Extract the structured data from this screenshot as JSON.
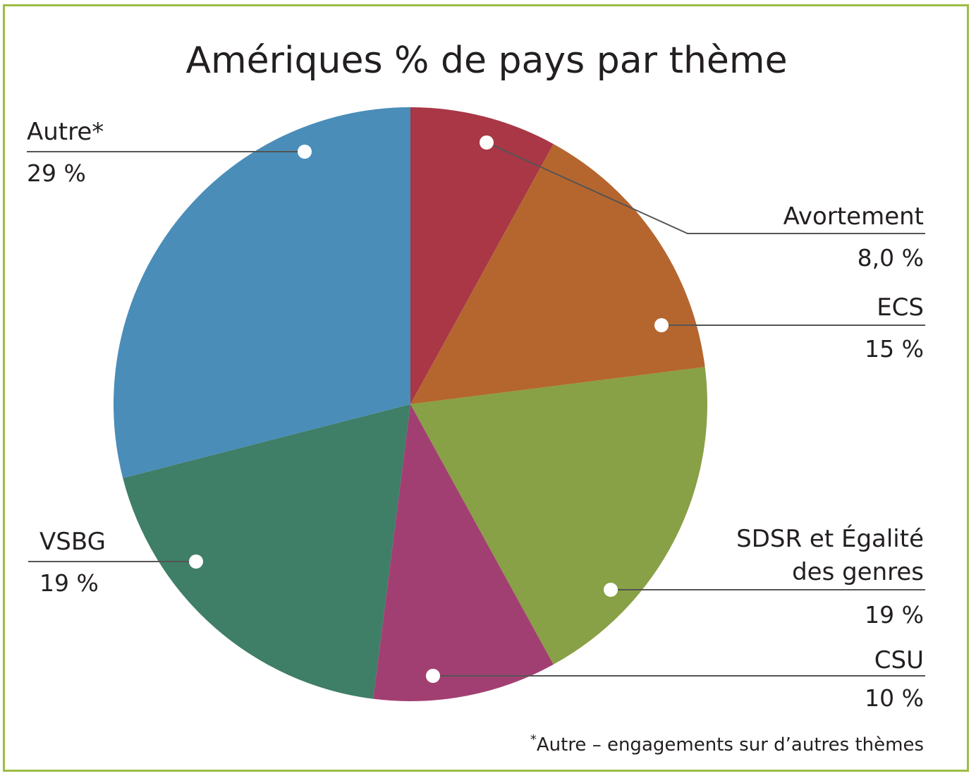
{
  "chart_data": {
    "type": "pie",
    "title": "Amériques % de pays par thème",
    "slices": [
      {
        "label": "Avortement",
        "value_label": "8,0 %",
        "value": 8.0,
        "color": "#a93746"
      },
      {
        "label": "ECS",
        "value_label": "15 %",
        "value": 15,
        "color": "#b5662f"
      },
      {
        "label": "SDSR et Égalité des genres",
        "label_lines": [
          "SDSR et Égalité",
          "des genres"
        ],
        "value_label": "19 %",
        "value": 19,
        "color": "#88a046"
      },
      {
        "label": "CSU",
        "value_label": "10 %",
        "value": 10,
        "color": "#a23f72"
      },
      {
        "label": "VSBG",
        "value_label": "19 %",
        "value": 19,
        "color": "#3f7e67"
      },
      {
        "label": "Autre*",
        "value_label": "29 %",
        "value": 29,
        "color": "#4a8db8"
      }
    ],
    "footnote_mark": "*",
    "footnote": "Autre – engagements sur d’autres thèmes"
  },
  "colors": {
    "frame": "#9cbd45",
    "leader": "#555555",
    "marker": "#ffffff"
  }
}
